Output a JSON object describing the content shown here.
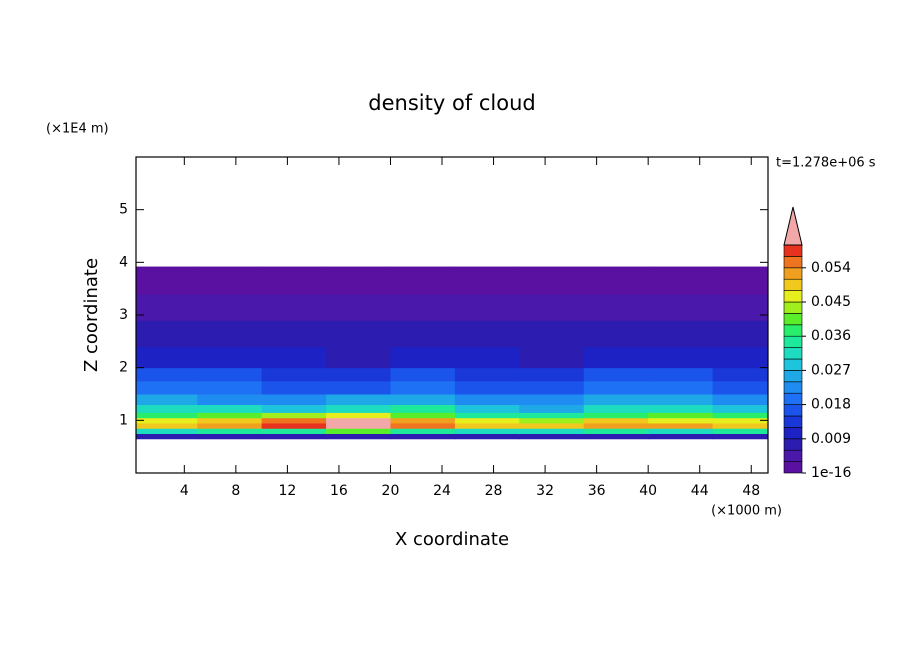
{
  "chart_data": {
    "type": "contour",
    "title": "density of cloud",
    "y_unit": "(×1E4 m)",
    "x_unit": "(×1000 m)",
    "time_label": "t=1.278e+06 s",
    "xlabel": "X coordinate",
    "ylabel": "Z coordinate",
    "xlim": [
      0.25,
      49.3
    ],
    "ylim": [
      0,
      6
    ],
    "xticks": [
      4,
      8,
      12,
      16,
      20,
      24,
      28,
      32,
      36,
      40,
      44,
      48
    ],
    "yticks": [
      1,
      2,
      3,
      4,
      5
    ],
    "x": [
      0.25,
      5,
      10,
      15,
      20,
      25,
      30,
      35,
      40,
      45,
      49.3
    ],
    "y": [
      0.65,
      0.75,
      0.85,
      0.95,
      1.05,
      1.15,
      1.3,
      1.5,
      1.75,
      2.0,
      2.4,
      2.9,
      3.4,
      3.92
    ],
    "z": [
      [
        0.007,
        0.006,
        0.006,
        0.007,
        0.006,
        0.006,
        0.007,
        0.006,
        0.006,
        0.007
      ],
      [
        0.03,
        0.033,
        0.036,
        0.04,
        0.035,
        0.032,
        0.03,
        0.034,
        0.031,
        0.033
      ],
      [
        0.05,
        0.052,
        0.058,
        0.062,
        0.056,
        0.05,
        0.048,
        0.053,
        0.051,
        0.05
      ],
      [
        0.046,
        0.05,
        0.055,
        0.063,
        0.052,
        0.047,
        0.044,
        0.048,
        0.046,
        0.045
      ],
      [
        0.038,
        0.04,
        0.042,
        0.045,
        0.04,
        0.036,
        0.034,
        0.038,
        0.041,
        0.037
      ],
      [
        0.03,
        0.03,
        0.028,
        0.03,
        0.033,
        0.027,
        0.026,
        0.03,
        0.032,
        0.029
      ],
      [
        0.024,
        0.023,
        0.022,
        0.024,
        0.025,
        0.021,
        0.022,
        0.024,
        0.026,
        0.023
      ],
      [
        0.019,
        0.02,
        0.018,
        0.017,
        0.019,
        0.018,
        0.017,
        0.019,
        0.02,
        0.018
      ],
      [
        0.015,
        0.016,
        0.014,
        0.013,
        0.015,
        0.014,
        0.013,
        0.015,
        0.016,
        0.014
      ],
      [
        0.011,
        0.01,
        0.01,
        0.009,
        0.011,
        0.01,
        0.009,
        0.01,
        0.011,
        0.01
      ],
      [
        0.006,
        0.007,
        0.006,
        0.006,
        0.007,
        0.006,
        0.006,
        0.007,
        0.006,
        0.006
      ],
      [
        0.003,
        0.004,
        0.003,
        0.003,
        0.004,
        0.003,
        0.003,
        0.004,
        0.003,
        0.003
      ],
      [
        0.001,
        0.001,
        0.001,
        0.001,
        0.001,
        0.001,
        0.001,
        0.001,
        0.001,
        0.001
      ]
    ],
    "clim": [
      0,
      0.06
    ],
    "cbar_ticks": [
      1e-16,
      0.009,
      0.018,
      0.027,
      0.036,
      0.045,
      0.054
    ],
    "colors": [
      "#5a10a0",
      "#4a18aa",
      "#2c1cb0",
      "#1c22c4",
      "#1a38d8",
      "#1a54ea",
      "#1e70f4",
      "#1e8cf0",
      "#1ea8e8",
      "#1ec4dc",
      "#1edcc0",
      "#1ee89a",
      "#28ee6a",
      "#5aee2a",
      "#a0ee1e",
      "#e6ee1e",
      "#f0c81e",
      "#f0a01e",
      "#f07420",
      "#e83220"
    ],
    "extend_color": "#f2a8a8"
  }
}
